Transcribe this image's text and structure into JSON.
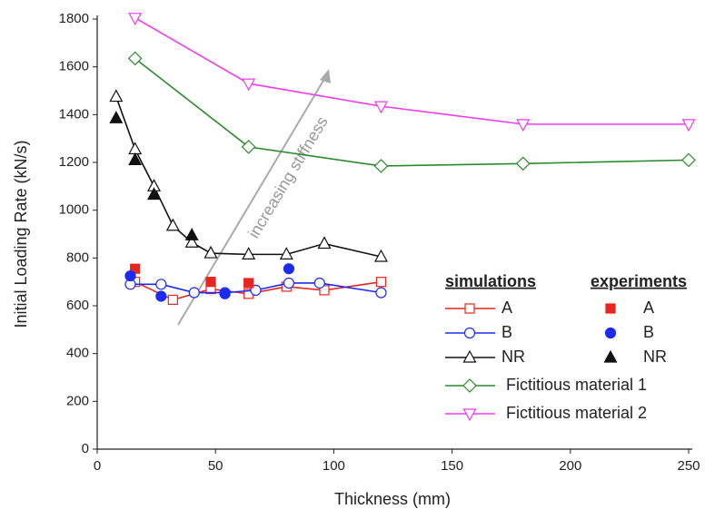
{
  "chart_data": {
    "type": "line",
    "x_label": "Thickness (mm)",
    "y_label": "Initial Loading Rate (kN/s)",
    "annotation": "increasing stiffness",
    "xlim": [
      0,
      250
    ],
    "xticks": [
      0,
      50,
      100,
      150,
      200,
      250
    ],
    "ylim": [
      0,
      1800
    ],
    "yticks": [
      0,
      200,
      400,
      600,
      800,
      1000,
      1200,
      1400,
      1600,
      1800
    ],
    "series_groups": [
      {
        "title": "simulations",
        "line": true,
        "series": [
          {
            "name": "A",
            "color": "#e8251f",
            "marker": "square",
            "filled": false,
            "x": [
              16,
              32,
              48,
              64,
              80,
              96,
              120
            ],
            "values": [
              700,
              625,
              670,
              650,
              680,
              665,
              700
            ]
          },
          {
            "name": "B",
            "color": "#1d2bf0",
            "marker": "circle",
            "filled": false,
            "x": [
              14,
              27,
              41,
              54,
              67,
              81,
              94,
              120
            ],
            "values": [
              690,
              690,
              655,
              655,
              665,
              695,
              695,
              655
            ]
          },
          {
            "name": "NR",
            "color": "#111111",
            "marker": "triangle-up",
            "filled": false,
            "x": [
              8,
              16,
              24,
              32,
              40,
              48,
              64,
              80,
              96,
              120
            ],
            "values": [
              1475,
              1255,
              1100,
              935,
              865,
              820,
              815,
              815,
              860,
              805
            ]
          },
          {
            "name": "Fictitious material 1",
            "color": "#2a8a2a",
            "marker": "diamond",
            "filled": false,
            "x": [
              16,
              64,
              120,
              180,
              250
            ],
            "values": [
              1635,
              1265,
              1185,
              1195,
              1210
            ]
          },
          {
            "name": "Fictitious material 2",
            "color": "#ee3cee",
            "marker": "triangle-down",
            "filled": false,
            "x": [
              16,
              64,
              120,
              180,
              250
            ],
            "values": [
              1805,
              1530,
              1435,
              1360,
              1360
            ]
          }
        ]
      },
      {
        "title": "experiments",
        "line": false,
        "series": [
          {
            "name": "A",
            "color": "#e8251f",
            "marker": "square",
            "filled": true,
            "x": [
              16,
              48,
              64
            ],
            "values": [
              755,
              700,
              695
            ]
          },
          {
            "name": "B",
            "color": "#1d2bf0",
            "marker": "circle",
            "filled": true,
            "x": [
              14,
              27,
              54,
              81
            ],
            "values": [
              725,
              640,
              650,
              755
            ]
          },
          {
            "name": "NR",
            "color": "#111111",
            "marker": "triangle-up",
            "filled": true,
            "x": [
              8,
              16,
              24,
              40
            ],
            "values": [
              1385,
              1210,
              1065,
              895
            ]
          }
        ]
      }
    ]
  }
}
